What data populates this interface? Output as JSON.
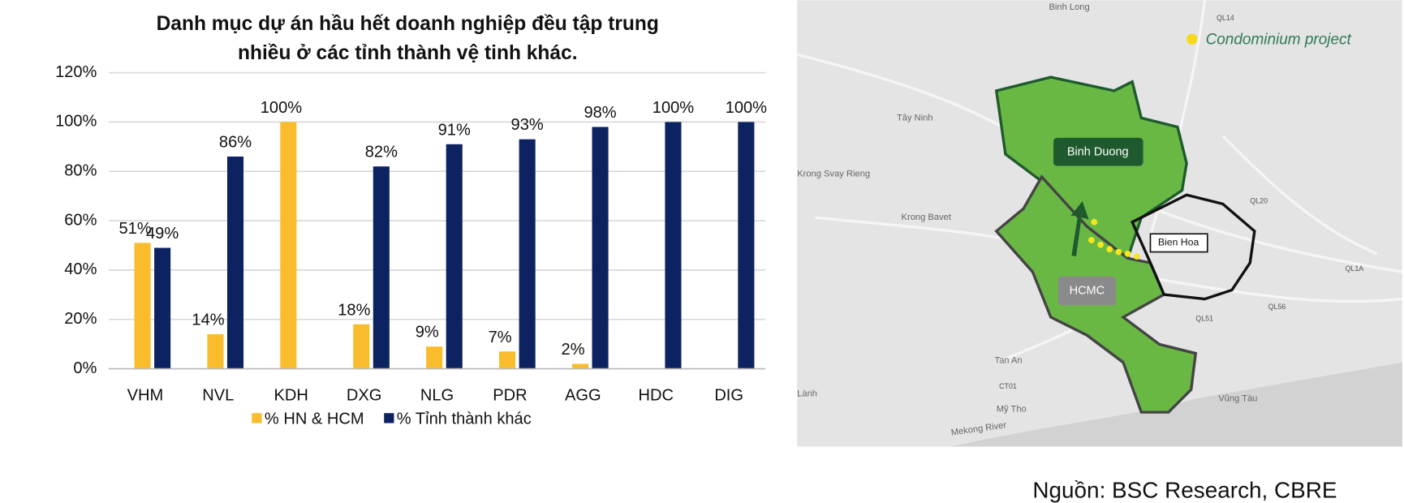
{
  "chart_data": {
    "type": "bar",
    "title": "Danh mục dự án hầu hết doanh nghiệp đều tập trung nhiều ở các tỉnh thành vệ tinh khác.",
    "categories": [
      "VHM",
      "NVL",
      "KDH",
      "DXG",
      "NLG",
      "PDR",
      "AGG",
      "HDC",
      "DIG"
    ],
    "series": [
      {
        "name": "% HN & HCM",
        "color": "#f9bc2c",
        "values": [
          51,
          14,
          100,
          18,
          9,
          7,
          2,
          0,
          0
        ],
        "value_labels": [
          "51%",
          "14%",
          "100%",
          "18%",
          "9%",
          "7%",
          "2%",
          null,
          null
        ]
      },
      {
        "name": "% Tỉnh thành khác",
        "color": "#0d2361",
        "values": [
          49,
          86,
          0,
          82,
          91,
          93,
          98,
          100,
          100
        ],
        "value_labels": [
          "49%",
          "86%",
          null,
          "82%",
          "91%",
          "93%",
          "98%",
          "100%",
          "100%"
        ]
      }
    ],
    "ylim": [
      0,
      120
    ],
    "yticks": [
      {
        "value": 0,
        "label": "0%"
      },
      {
        "value": 20,
        "label": "20%"
      },
      {
        "value": 40,
        "label": "40%"
      },
      {
        "value": 60,
        "label": "60%"
      },
      {
        "value": 80,
        "label": "80%"
      },
      {
        "value": 100,
        "label": "100%"
      },
      {
        "value": 120,
        "label": "120%"
      }
    ],
    "grid": true
  },
  "map": {
    "legend": "Condominium project",
    "regions": [
      "Binh Duong",
      "HCMC",
      "Bien Hoa"
    ],
    "labels": [
      "Binh Long",
      "QL14",
      "Tây Ninh",
      "Krong Svay Rieng",
      "Krong Bavet",
      "QL20",
      "QL1A",
      "QL51",
      "QL56",
      "Tan An",
      "CT01",
      "Mỹ Tho",
      "Mekong River",
      "Vũng Tàu",
      "Lành"
    ]
  },
  "source": "Nguồn: BSC Research, CBRE"
}
